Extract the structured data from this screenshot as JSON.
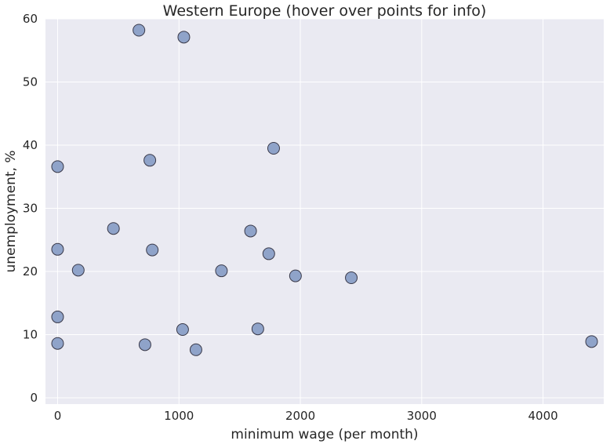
{
  "chart_data": {
    "type": "scatter",
    "title": "Western Europe (hover over points for info)",
    "xlabel": "minimum wage (per month)",
    "ylabel": "unemployment, %",
    "xlim": [
      -100,
      4500
    ],
    "ylim": [
      -1,
      60
    ],
    "xticks": [
      0,
      1000,
      2000,
      3000,
      4000
    ],
    "yticks": [
      0,
      10,
      20,
      30,
      40,
      50,
      60
    ],
    "grid": true,
    "points": [
      {
        "x": 670,
        "y": 58.2
      },
      {
        "x": 1040,
        "y": 57.1
      },
      {
        "x": 1780,
        "y": 39.5
      },
      {
        "x": 760,
        "y": 37.6
      },
      {
        "x": 0,
        "y": 36.6
      },
      {
        "x": 460,
        "y": 26.8
      },
      {
        "x": 1590,
        "y": 26.4
      },
      {
        "x": 0,
        "y": 23.5
      },
      {
        "x": 780,
        "y": 23.4
      },
      {
        "x": 1740,
        "y": 22.8
      },
      {
        "x": 170,
        "y": 20.2
      },
      {
        "x": 1350,
        "y": 20.1
      },
      {
        "x": 1960,
        "y": 19.3
      },
      {
        "x": 2420,
        "y": 19.0
      },
      {
        "x": 0,
        "y": 12.8
      },
      {
        "x": 1030,
        "y": 10.8
      },
      {
        "x": 1650,
        "y": 10.9
      },
      {
        "x": 0,
        "y": 8.6
      },
      {
        "x": 720,
        "y": 8.4
      },
      {
        "x": 1140,
        "y": 7.6
      },
      {
        "x": 4400,
        "y": 8.9
      }
    ]
  }
}
